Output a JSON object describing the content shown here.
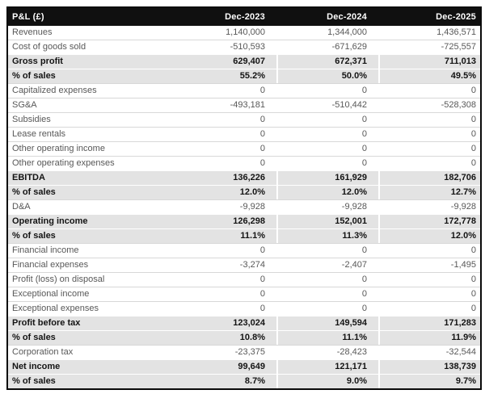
{
  "colors": {
    "header_bg": "#101010",
    "header_text": "#ffffff",
    "highlight_row_bg": "#e3e3e3",
    "normal_text": "#585858",
    "emphasis_text": "#141414",
    "row_separator": "#d8d8d8",
    "table_border": "#0a0a0a"
  },
  "chart_data": {
    "type": "table",
    "title": "P&L (£)",
    "columns": [
      "Dec-2023",
      "Dec-2024",
      "Dec-2025"
    ],
    "rows": [
      {
        "label": "Revenues",
        "values": [
          "1,140,000",
          "1,344,000",
          "1,436,571"
        ],
        "emphasis": false
      },
      {
        "label": "Cost of goods sold",
        "values": [
          "-510,593",
          "-671,629",
          "-725,557"
        ],
        "emphasis": false
      },
      {
        "label": "Gross profit",
        "values": [
          "629,407",
          "672,371",
          "711,013"
        ],
        "emphasis": true
      },
      {
        "label": "% of sales",
        "values": [
          "55.2%",
          "50.0%",
          "49.5%"
        ],
        "emphasis": true
      },
      {
        "label": "Capitalized expenses",
        "values": [
          "0",
          "0",
          "0"
        ],
        "emphasis": false
      },
      {
        "label": "SG&A",
        "values": [
          "-493,181",
          "-510,442",
          "-528,308"
        ],
        "emphasis": false
      },
      {
        "label": "Subsidies",
        "values": [
          "0",
          "0",
          "0"
        ],
        "emphasis": false
      },
      {
        "label": "Lease rentals",
        "values": [
          "0",
          "0",
          "0"
        ],
        "emphasis": false
      },
      {
        "label": "Other operating income",
        "values": [
          "0",
          "0",
          "0"
        ],
        "emphasis": false
      },
      {
        "label": "Other operating expenses",
        "values": [
          "0",
          "0",
          "0"
        ],
        "emphasis": false
      },
      {
        "label": "EBITDA",
        "values": [
          "136,226",
          "161,929",
          "182,706"
        ],
        "emphasis": true
      },
      {
        "label": "% of sales",
        "values": [
          "12.0%",
          "12.0%",
          "12.7%"
        ],
        "emphasis": true
      },
      {
        "label": "D&A",
        "values": [
          "-9,928",
          "-9,928",
          "-9,928"
        ],
        "emphasis": false
      },
      {
        "label": "Operating income",
        "values": [
          "126,298",
          "152,001",
          "172,778"
        ],
        "emphasis": true
      },
      {
        "label": "% of sales",
        "values": [
          "11.1%",
          "11.3%",
          "12.0%"
        ],
        "emphasis": true
      },
      {
        "label": "Financial income",
        "values": [
          "0",
          "0",
          "0"
        ],
        "emphasis": false
      },
      {
        "label": "Financial expenses",
        "values": [
          "-3,274",
          "-2,407",
          "-1,495"
        ],
        "emphasis": false
      },
      {
        "label": "Profit (loss) on disposal",
        "values": [
          "0",
          "0",
          "0"
        ],
        "emphasis": false
      },
      {
        "label": "Exceptional income",
        "values": [
          "0",
          "0",
          "0"
        ],
        "emphasis": false
      },
      {
        "label": "Exceptional expenses",
        "values": [
          "0",
          "0",
          "0"
        ],
        "emphasis": false
      },
      {
        "label": "Profit before tax",
        "values": [
          "123,024",
          "149,594",
          "171,283"
        ],
        "emphasis": true
      },
      {
        "label": "% of sales",
        "values": [
          "10.8%",
          "11.1%",
          "11.9%"
        ],
        "emphasis": true
      },
      {
        "label": "Corporation tax",
        "values": [
          "-23,375",
          "-28,423",
          "-32,544"
        ],
        "emphasis": false
      },
      {
        "label": "Net income",
        "values": [
          "99,649",
          "121,171",
          "138,739"
        ],
        "emphasis": true
      },
      {
        "label": "% of sales",
        "values": [
          "8.7%",
          "9.0%",
          "9.7%"
        ],
        "emphasis": true
      }
    ]
  }
}
